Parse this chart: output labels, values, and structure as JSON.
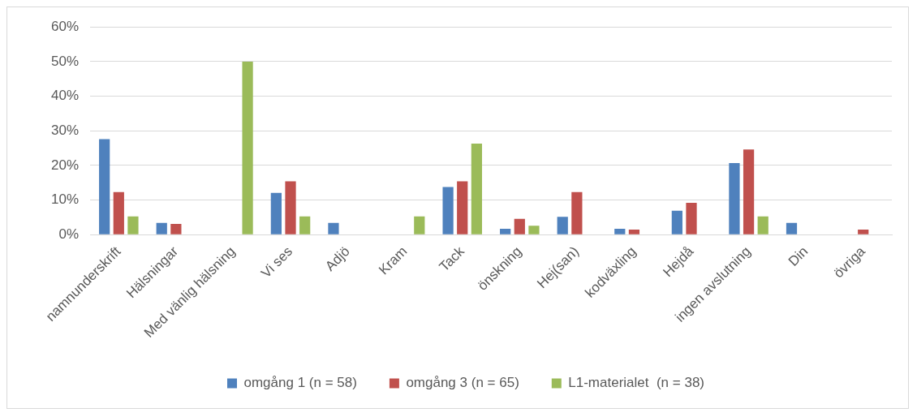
{
  "chart_data": {
    "type": "bar",
    "categories": [
      "namnunderskrift",
      "Hälsningar",
      "Med vänlig hälsning",
      "Vi ses",
      "Adjö",
      "Kram",
      "Tack",
      "önskning",
      "Hej(san)",
      "kodväxling",
      "Hejdå",
      "ingen avslutning",
      "Din",
      "övriga"
    ],
    "series": [
      {
        "name": "omgång 1 (n = 58)",
        "color": "#4f81bd",
        "values": [
          27.6,
          3.4,
          0,
          12.1,
          3.4,
          0,
          13.8,
          1.7,
          5.2,
          1.7,
          6.9,
          20.7,
          3.4,
          0
        ]
      },
      {
        "name": "omgång 3 (n = 65)",
        "color": "#c0504d",
        "values": [
          12.3,
          3.1,
          0,
          15.4,
          0,
          0,
          15.4,
          4.6,
          12.3,
          1.5,
          9.2,
          24.6,
          0,
          1.5
        ]
      },
      {
        "name": "L1-materialet  (n = 38)",
        "color": "#9bbb59",
        "values": [
          5.3,
          0,
          50,
          5.3,
          0,
          5.3,
          26.3,
          2.6,
          0,
          0,
          0,
          5.3,
          0,
          0
        ]
      }
    ],
    "ylim": [
      0,
      60
    ],
    "yticks": [
      {
        "value": 0,
        "label": "0%"
      },
      {
        "value": 10,
        "label": "10%"
      },
      {
        "value": 20,
        "label": "20%"
      },
      {
        "value": 30,
        "label": "30%"
      },
      {
        "value": 40,
        "label": "40%"
      },
      {
        "value": 50,
        "label": "50%"
      },
      {
        "value": 60,
        "label": "60%"
      }
    ],
    "grid": "y",
    "legend": "bottom"
  }
}
